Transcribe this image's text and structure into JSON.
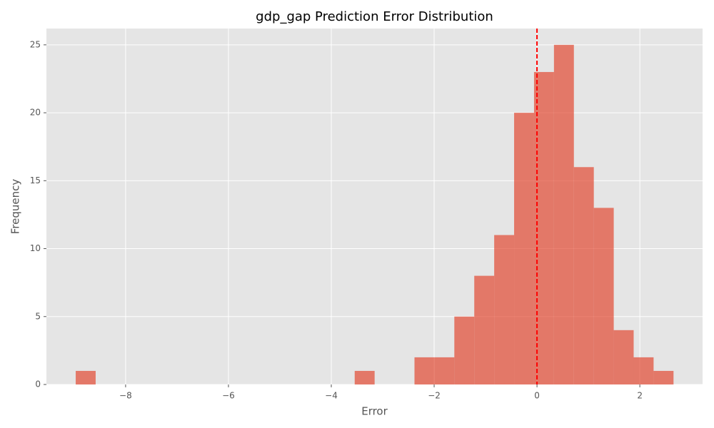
{
  "chart_data": {
    "type": "histogram",
    "title": "gdp_gap Prediction Error Distribution",
    "x_label": "Error",
    "y_label": "Frequency",
    "bins": [
      -8.97,
      -8.5825,
      -8.195,
      -7.8075,
      -7.42,
      -7.0325,
      -6.645,
      -6.2575,
      -5.87,
      -5.4825,
      -5.095,
      -4.7075,
      -4.32,
      -3.9325,
      -3.545,
      -3.1575,
      -2.77,
      -2.3825,
      -1.995,
      -1.6075,
      -1.22,
      -0.8325,
      -0.445,
      -0.0575,
      0.33,
      0.7175,
      1.105,
      1.4925,
      1.88,
      2.2675,
      2.655
    ],
    "counts": [
      1,
      0,
      0,
      0,
      0,
      0,
      0,
      0,
      0,
      0,
      0,
      0,
      0,
      0,
      1,
      0,
      0,
      2,
      2,
      5,
      8,
      11,
      20,
      23,
      25,
      16,
      13,
      4,
      2,
      1
    ],
    "color": "#E24A33",
    "vline": 0,
    "vline_color": "#ff0000",
    "xlim": [
      -9.54,
      3.22
    ],
    "ylim": [
      0,
      26.2
    ],
    "xticks": [
      {
        "value": -8,
        "label": "−8"
      },
      {
        "value": -6,
        "label": "−6"
      },
      {
        "value": -4,
        "label": "−4"
      },
      {
        "value": -2,
        "label": "−2"
      },
      0,
      2
    ],
    "yticks": [
      0,
      5,
      10,
      15,
      20,
      25
    ],
    "grid": true
  }
}
